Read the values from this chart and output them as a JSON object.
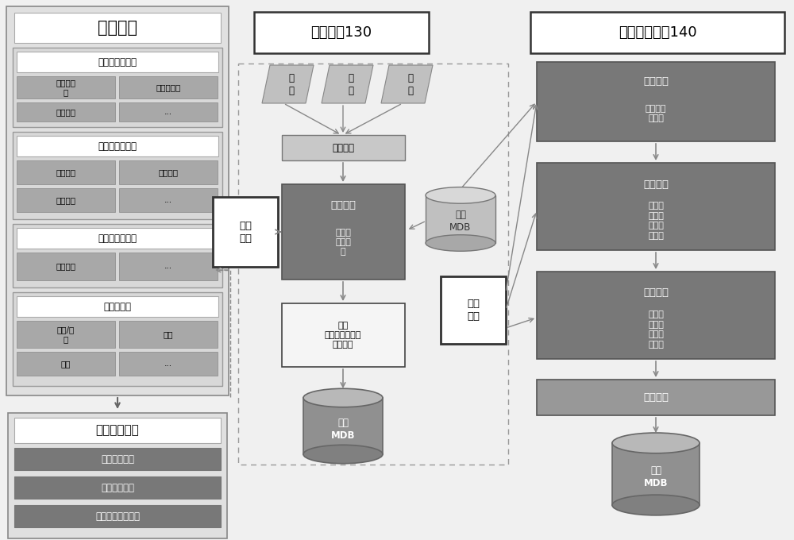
{
  "title": "量纲规格",
  "title2": "计费模块130",
  "title3": "账务处理模块140",
  "subtitle1": "边缘网络类量纲",
  "subtitle2": "边缘计算类量纲",
  "subtitle3": "行业专网类量纲",
  "subtitle4": "切片类量纲",
  "label_rules": "量纲计算规则",
  "cell_11": "上下行带\n宽",
  "cell_12": "网络容验证",
  "cell_21": "网络容量",
  "cell_22": "...",
  "cell_31": "计算资源",
  "cell_32": "存储资源",
  "cell_41": "增强计算",
  "cell_42": "...",
  "cell_51": "基础类型",
  "cell_52": "...",
  "cell_61": "独享/共\n享",
  "cell_62": "带宽",
  "cell_71": "区域",
  "cell_72": "...",
  "rule1": "计费计算规则",
  "rule2": "账务计算规则",
  "rule3": "免费资源计算规则",
  "huadan": "话\n单",
  "jifei_gateway": "计费网关",
  "ziliao_mdb": "资料\nMDB",
  "jifei_qi": "计费\n容器",
  "yewu_fenxi": "业务分析",
  "yewu_sub": "量纲分\n析和加\n工",
  "picha": "批价\n量纲计算规则分\n析和计费",
  "jifei_mdb": "计费\nMDB",
  "zhangwu_qi": "账务\n容器",
  "ziliao_fenxi": "资料分析",
  "ziliao_sub": "量纲分析\n与加工",
  "gufei_js": "固费计算",
  "gufei_sub": "多量纲\n账务规\n则分析\n和固费",
  "youhui_js": "优惠计算",
  "youhui_sub": "多量纲\n优惠规\n则分析\n和优惠",
  "gengxin_zd": "更新账单",
  "zhangwu_mdb": "账务\nMDB",
  "bg": "#f0f0f0",
  "light_box": "#e8e8e8",
  "white": "#ffffff",
  "mid_gray": "#b8b8b8",
  "dark_gray": "#787878",
  "darker_gray": "#686868",
  "cell_gray": "#a8a8a8"
}
